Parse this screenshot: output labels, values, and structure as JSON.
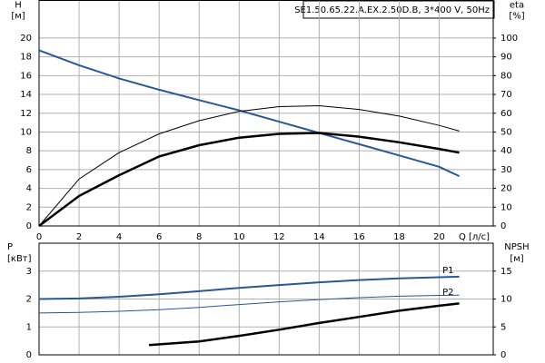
{
  "title": "SE1.50.65.22.A.EX.2.50D.B, 3*400 V, 50Hz",
  "chart_data": [
    {
      "type": "line",
      "y_label": "H",
      "y_unit": "[м]",
      "y2_label": "eta",
      "y2_unit": "[%]",
      "x_label": "Q [л/с]",
      "xlim": [
        0,
        22.7
      ],
      "xticks": [
        0,
        2,
        4,
        6,
        8,
        10,
        12,
        14,
        16,
        18,
        20
      ],
      "ylim": [
        0,
        24
      ],
      "yticks": [
        0,
        2,
        4,
        6,
        8,
        10,
        12,
        14,
        16,
        18,
        20
      ],
      "y2lim": [
        0,
        120
      ],
      "y2ticks": [
        0,
        10,
        20,
        30,
        40,
        50,
        60,
        70,
        80,
        90,
        100
      ],
      "grid": true,
      "show_x_tick_labels": true,
      "x": [
        0,
        2,
        4,
        6,
        8,
        10,
        12,
        14,
        16,
        18,
        20,
        21
      ],
      "series": [
        {
          "color": "#2a5796",
          "line_width": 2,
          "values": [
            18.7,
            17.1,
            15.7,
            14.5,
            13.4,
            12.3,
            11.1,
            9.9,
            8.7,
            7.5,
            6.3,
            5.3
          ]
        },
        {
          "color": "#000000",
          "line_width": 1,
          "axis": "y2",
          "values": [
            0,
            25,
            39,
            49,
            56,
            61,
            63.5,
            64,
            62,
            58.5,
            53.5,
            50.5
          ]
        },
        {
          "color": "#000000",
          "line_width": 2.5,
          "axis": "y2",
          "values": [
            0,
            16,
            27,
            37,
            43,
            47,
            49,
            49.5,
            47.5,
            44.5,
            41,
            39
          ]
        }
      ]
    },
    {
      "type": "line",
      "y_label": "P",
      "y_unit": "[кВт]",
      "y2_label": "NPSH",
      "y2_unit": "[м]",
      "xlim": [
        0,
        22.7
      ],
      "xticks": [
        0,
        2,
        4,
        6,
        8,
        10,
        12,
        14,
        16,
        18,
        20
      ],
      "ylim": [
        0,
        4
      ],
      "yticks": [
        0,
        1,
        2,
        3
      ],
      "y2lim": [
        0,
        20
      ],
      "y2ticks": [
        0,
        5,
        10,
        15
      ],
      "grid": true,
      "show_x_tick_labels": false,
      "x": [
        0,
        2,
        4,
        6,
        8,
        10,
        12,
        14,
        16,
        18,
        20,
        21
      ],
      "series": [
        {
          "name": "P1",
          "color": "#2a5796",
          "line_width": 2,
          "values": [
            2.0,
            2.02,
            2.08,
            2.17,
            2.28,
            2.4,
            2.5,
            2.6,
            2.68,
            2.74,
            2.78,
            2.8
          ]
        },
        {
          "name": "P2",
          "color": "#2a5796",
          "line_width": 1,
          "values": [
            1.5,
            1.52,
            1.56,
            1.62,
            1.7,
            1.8,
            1.9,
            1.98,
            2.05,
            2.1,
            2.13,
            2.14
          ]
        },
        {
          "color": "#000000",
          "line_width": 2.5,
          "axis": "y2",
          "x": [
            5.5,
            8,
            10,
            12,
            14,
            16,
            18,
            20,
            21
          ],
          "values": [
            1.75,
            2.4,
            3.4,
            4.5,
            5.7,
            6.8,
            7.9,
            8.8,
            9.2
          ]
        }
      ]
    }
  ]
}
